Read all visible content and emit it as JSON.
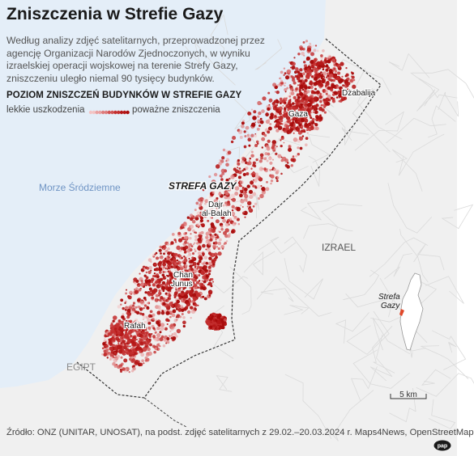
{
  "title": "Zniszczenia w Strefie Gazy",
  "description": "Według analizy zdjęć satelitarnych, przeprowadzonej przez agencję Organizacji Narodów Zjednoczonych, w wyniku izraelskiej operacji wojskowej na terenie Strefy Gazy, zniszczeniu uległo niemal 90 tysięcy budynków.",
  "legend": {
    "title": "POZIOM ZNISZCZEŃ BUDYNKÓW W STREFIE GAZY",
    "low_label": "lekkie uszkodzenia",
    "high_label": "poważne zniszczenia",
    "colors": [
      "#f3c4c4",
      "#e9a0a0",
      "#de7b7b",
      "#d15252",
      "#c43030",
      "#b51818",
      "#a80c0c"
    ]
  },
  "map": {
    "sea_label": "Morze Śródziemne",
    "strip_label": "STREFA GAZY",
    "country_labels": {
      "israel": "IZRAEL",
      "egypt": "EGIPT"
    },
    "cities": {
      "dzabalija": "Dżabalija",
      "gaza": "Gaza",
      "dajr_line1": "Dajr",
      "dajr_line2": "al-Balah",
      "chan_line1": "Chan",
      "chan_line2": "Junus",
      "rafah": "Rafah"
    },
    "inset": {
      "label_line1": "Strefa",
      "label_line2": "Gazy"
    },
    "colors": {
      "sea": "#e4eef8",
      "land": "#f0f0f0",
      "roads": "#dadada",
      "border": "#333333",
      "damage": "#b51818"
    }
  },
  "scale_label": "5 km",
  "source": "Źródło: ONZ (UNITAR, UNOSAT), na podst. zdjęć satelitarnych z 29.02.–20.03.2024 r. Maps4News, OpenStreetMap",
  "logo_text": "pap"
}
